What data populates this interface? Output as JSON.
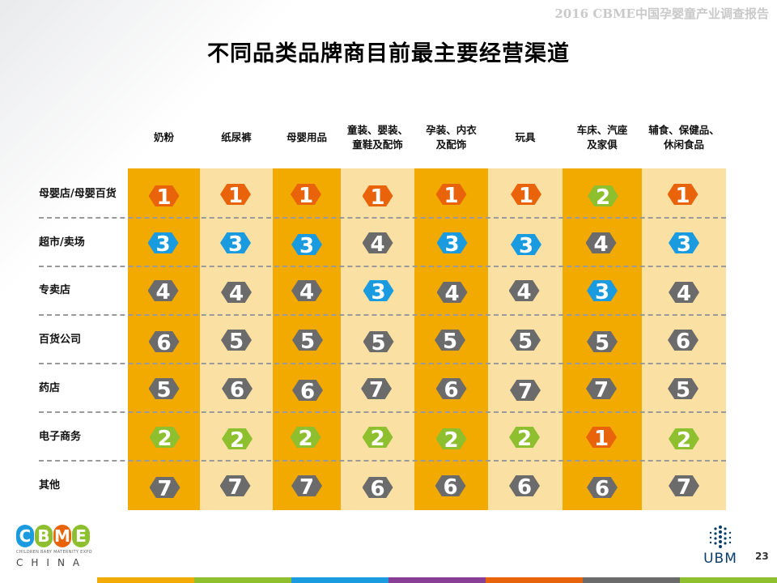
{
  "header": {
    "report_title": "2016 CBME中国孕婴童产业调查报告"
  },
  "title": "不同品类品牌商目前最主要经营渠道",
  "columns": [
    "奶粉",
    "纸尿裤",
    "母婴用品",
    "童装、婴装、\n童鞋及配饰",
    "孕装、内衣\n及配饰",
    "玩具",
    "车床、汽座\n及家俱",
    "辅食、保健品、\n休闲食品"
  ],
  "rows": [
    {
      "label": "母婴店/母婴百货",
      "ranks": [
        1,
        1,
        1,
        1,
        1,
        1,
        2,
        1
      ]
    },
    {
      "label": "超市/卖场",
      "ranks": [
        3,
        3,
        3,
        4,
        3,
        3,
        4,
        3
      ]
    },
    {
      "label": "专卖店",
      "ranks": [
        4,
        4,
        4,
        3,
        4,
        4,
        3,
        4
      ]
    },
    {
      "label": "百货公司",
      "ranks": [
        6,
        5,
        5,
        5,
        5,
        5,
        5,
        6
      ]
    },
    {
      "label": "药店",
      "ranks": [
        5,
        6,
        6,
        7,
        6,
        7,
        7,
        5
      ]
    },
    {
      "label": "电子商务",
      "ranks": [
        2,
        2,
        2,
        2,
        2,
        2,
        1,
        2
      ]
    },
    {
      "label": "其他",
      "ranks": [
        7,
        7,
        7,
        6,
        6,
        6,
        6,
        7
      ]
    }
  ],
  "colors": {
    "column_dark": "#f2a900",
    "column_light": "#fbe0a4",
    "rank_1": "#e8630a",
    "rank_2": "#8dbf2f",
    "rank_3": "#1a9be0",
    "rank_other": "#6b6b6b",
    "bottom_bar": [
      "#f2a900",
      "#8dbf2f",
      "#1a9be0",
      "#8a3f96",
      "#e8630a",
      "#6b6b6b",
      "#8dbf2f"
    ]
  },
  "logos": {
    "cbme_letters": [
      "C",
      "B",
      "M",
      "E"
    ],
    "cbme_subtitle": "CHILDREN BABY MATERNITY EXPO",
    "cbme_china": "CHINA",
    "ubm_text": "UBM"
  },
  "page_number": "23"
}
